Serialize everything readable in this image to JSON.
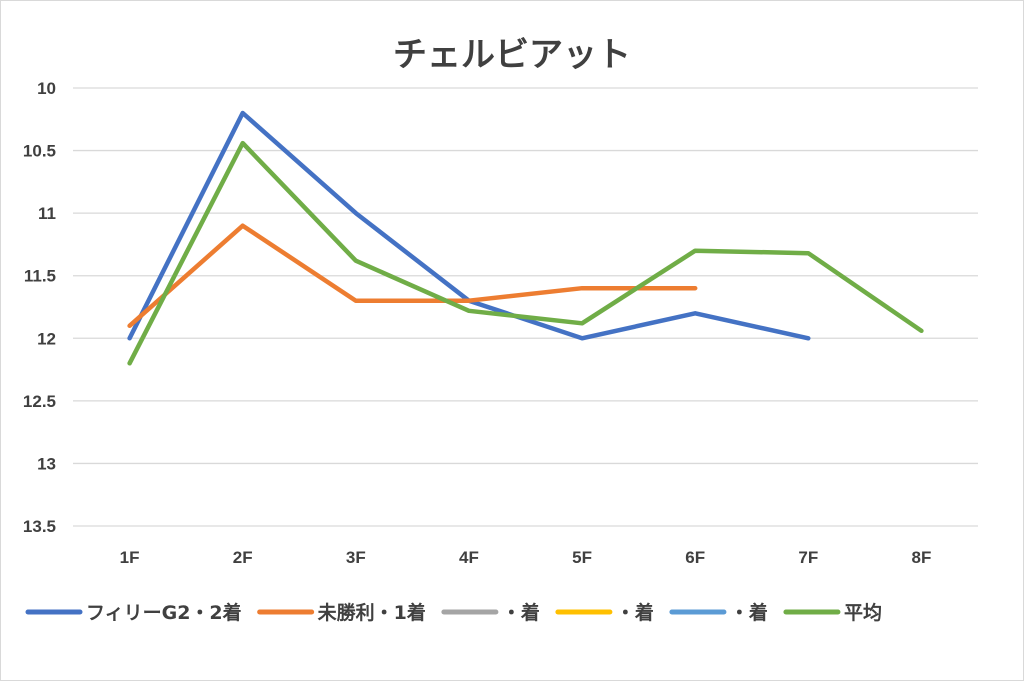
{
  "chart_data": {
    "type": "line",
    "title": "チェルビアット",
    "categories": [
      "1F",
      "2F",
      "3F",
      "4F",
      "5F",
      "6F",
      "7F",
      "8F"
    ],
    "y_ticks": [
      "10",
      "10.5",
      "11",
      "11.5",
      "12",
      "12.5",
      "13",
      "13.5"
    ],
    "ylim": [
      10,
      13.5
    ],
    "y_reversed": true,
    "grid": true,
    "legend_position": "bottom",
    "series": [
      {
        "name": "フィリーG2・2着",
        "color": "#4472C4",
        "values": [
          12.0,
          10.2,
          11.0,
          11.7,
          12.0,
          11.8,
          12.0,
          null
        ]
      },
      {
        "name": "未勝利・1着",
        "color": "#ED7D31",
        "values": [
          11.9,
          11.1,
          11.7,
          11.7,
          11.6,
          11.6,
          null,
          null
        ]
      },
      {
        "name": "・着",
        "color": "#A5A5A5",
        "values": [
          null,
          null,
          null,
          null,
          null,
          null,
          null,
          null
        ]
      },
      {
        "name": "・着",
        "color": "#FFC000",
        "values": [
          null,
          null,
          null,
          null,
          null,
          null,
          null,
          null
        ]
      },
      {
        "name": "・着",
        "color": "#5B9BD5",
        "values": [
          null,
          null,
          null,
          null,
          null,
          null,
          null,
          null
        ]
      },
      {
        "name": "平均",
        "color": "#70AD47",
        "values": [
          12.2,
          10.44,
          11.38,
          11.78,
          11.88,
          11.3,
          11.32,
          11.94
        ]
      }
    ]
  }
}
